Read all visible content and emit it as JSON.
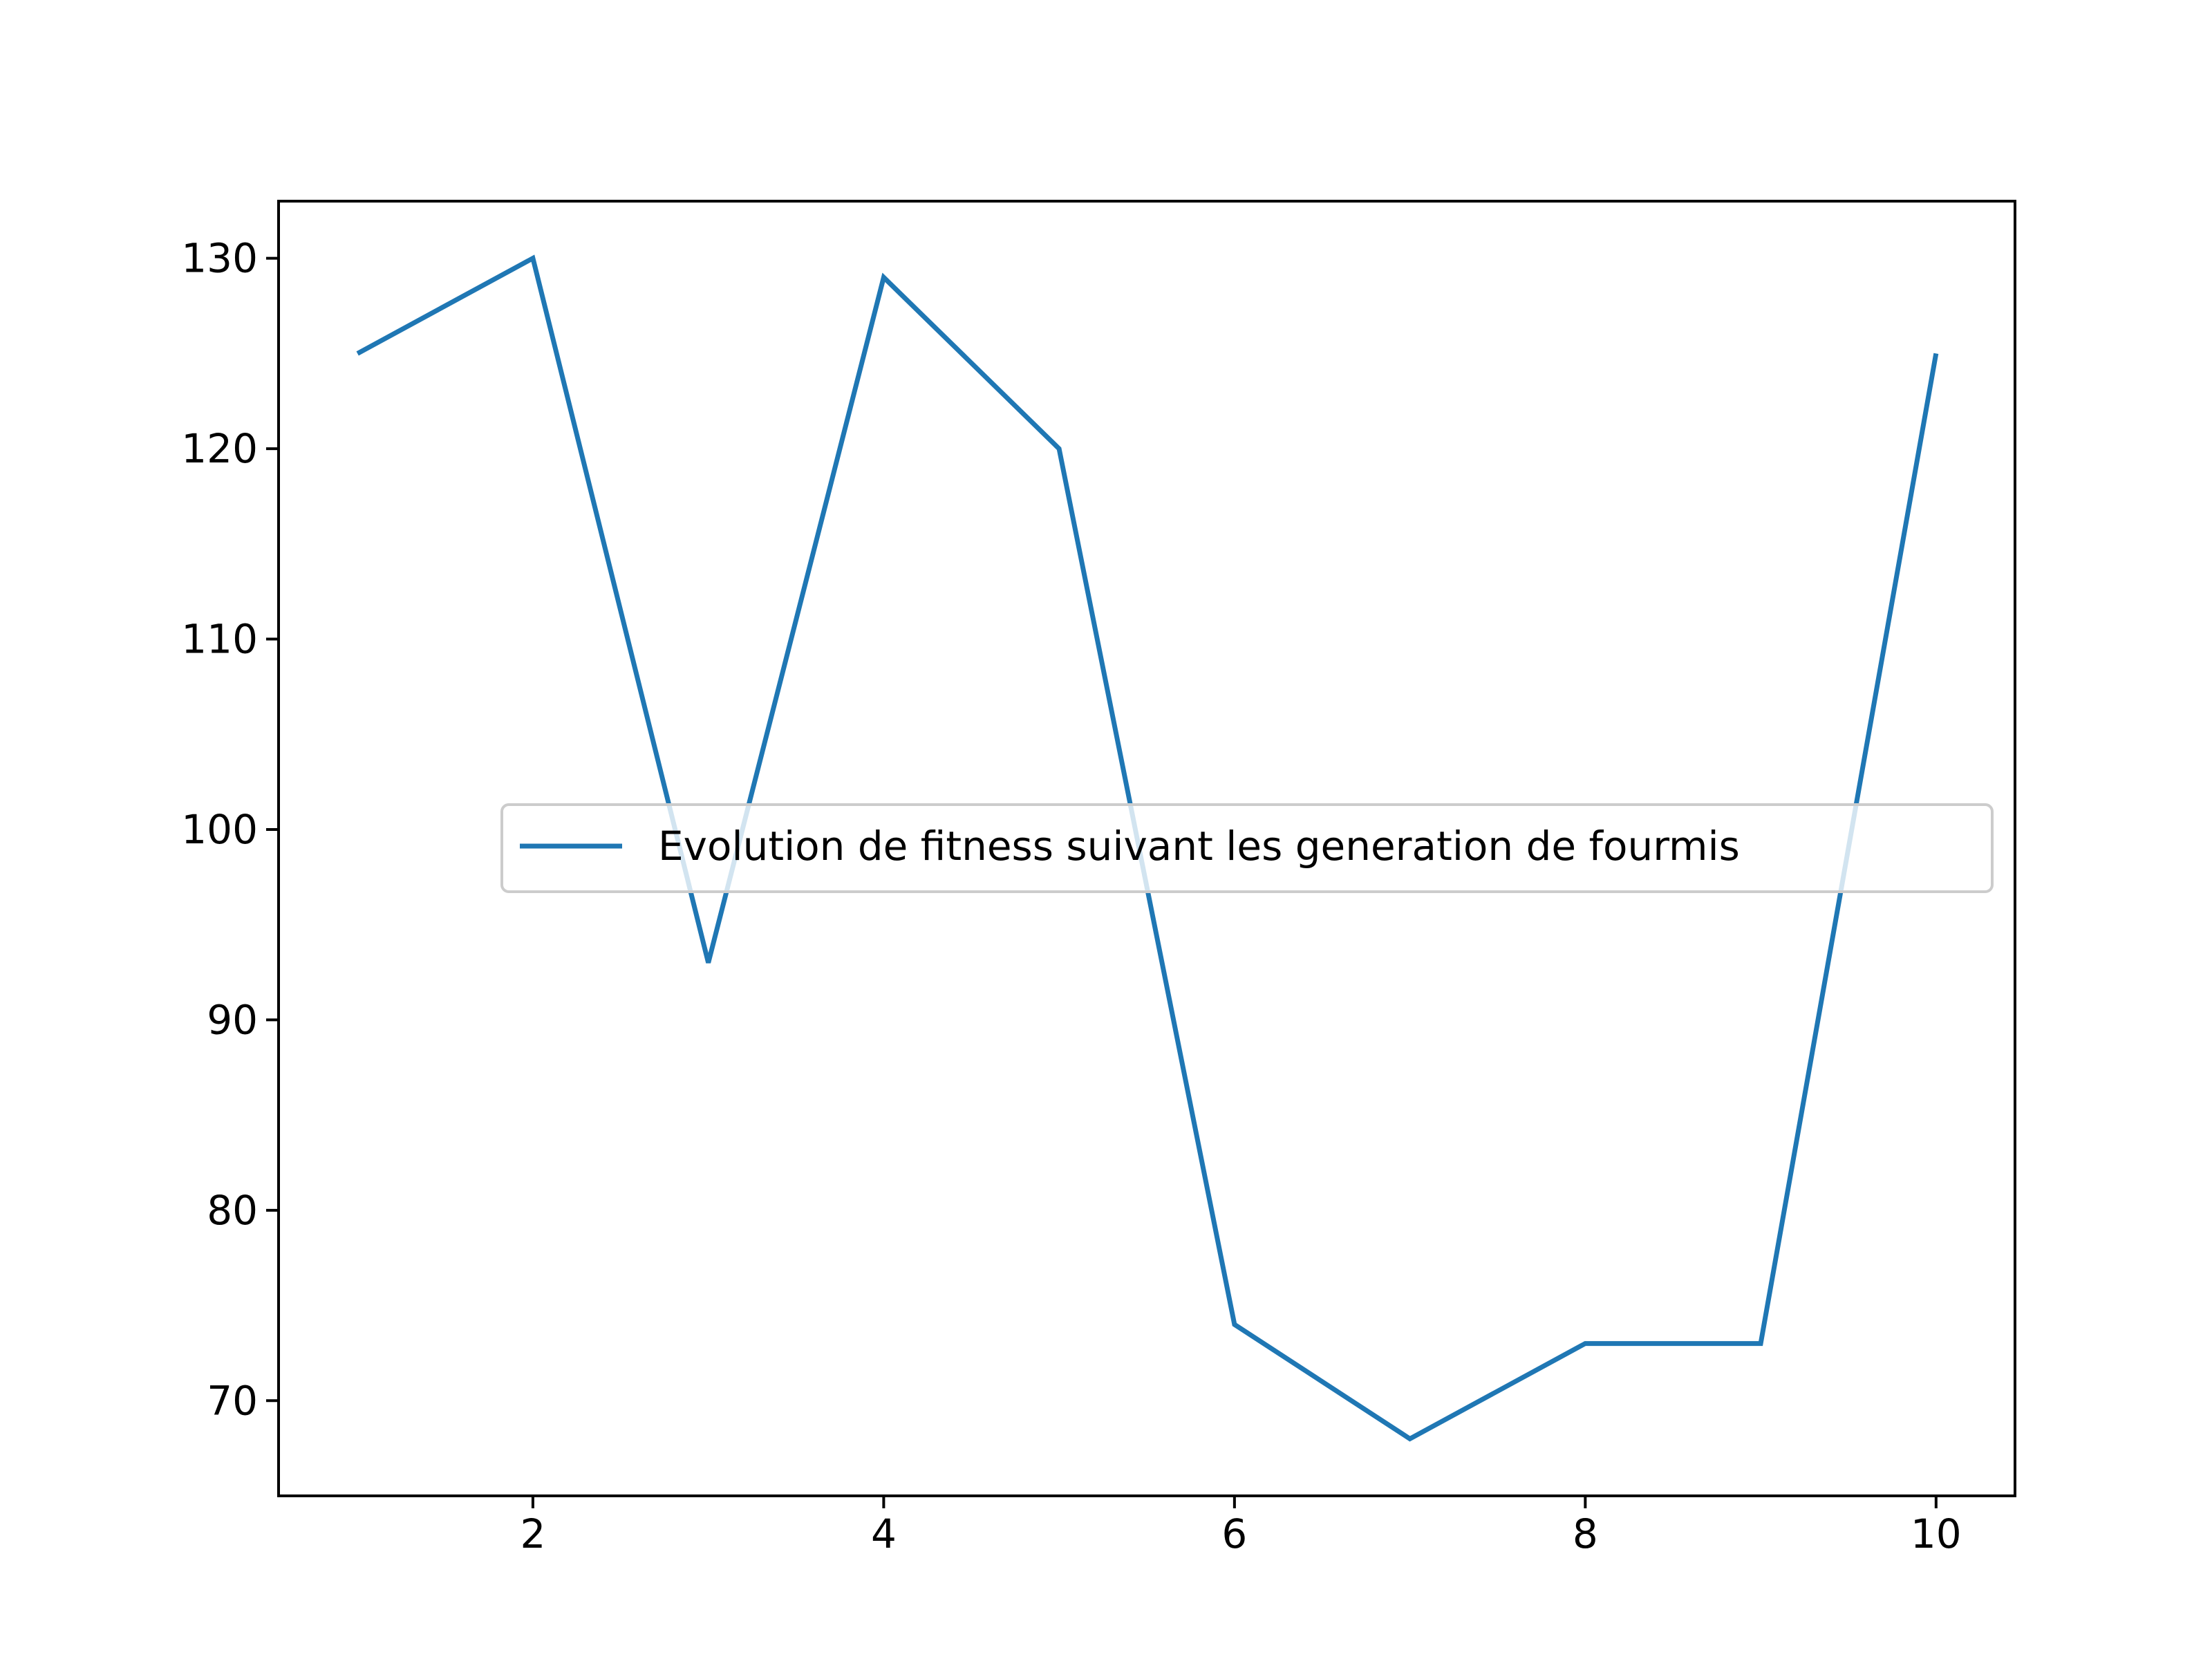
{
  "chart_data": {
    "type": "line",
    "title": "",
    "xlabel": "",
    "ylabel": "",
    "x": [
      1,
      2,
      3,
      4,
      5,
      6,
      7,
      8,
      9,
      10
    ],
    "series": [
      {
        "name": "Evolution de fitness suivant les generation de fourmis",
        "values": [
          125,
          130,
          93,
          129,
          120,
          74,
          68,
          73,
          73,
          125
        ],
        "color": "#1f77b4"
      }
    ],
    "xlim": [
      0.55,
      10.45
    ],
    "ylim": [
      65,
      133
    ],
    "xticks": [
      2,
      4,
      6,
      8,
      10
    ],
    "yticks": [
      70,
      80,
      90,
      100,
      110,
      120,
      130
    ],
    "xtick_labels": [
      "2",
      "4",
      "6",
      "8",
      "10"
    ],
    "ytick_labels": [
      "70",
      "80",
      "90",
      "100",
      "110",
      "120",
      "130"
    ],
    "grid": false,
    "legend_position": "center-right"
  }
}
